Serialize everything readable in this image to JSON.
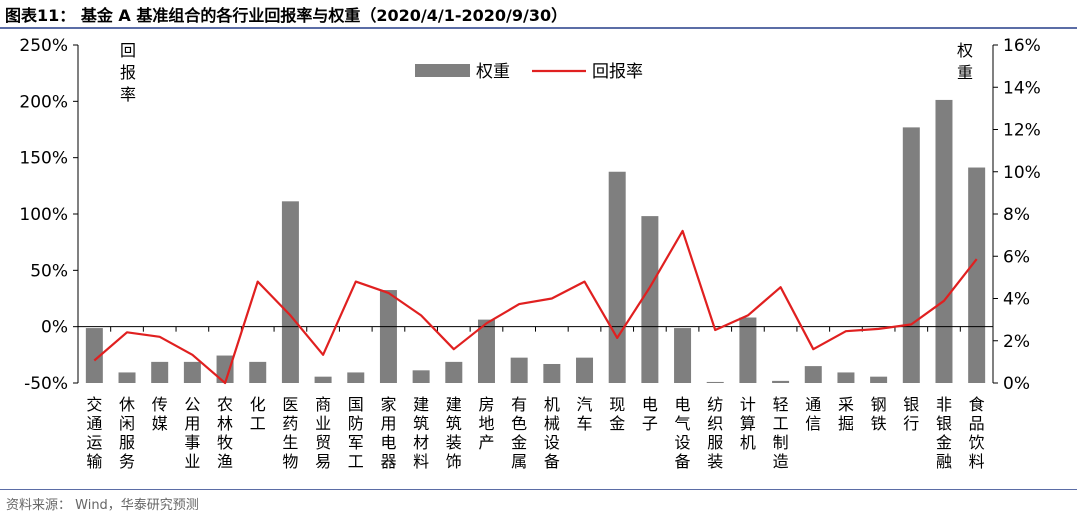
{
  "title": "图表11：  基金 A 基准组合的各行业回报率与权重（2020/4/1-2020/9/30）",
  "source": "资料来源：  Wind，华泰研究预测",
  "chart_data": {
    "type": "bar+line",
    "categories": [
      "交通运输",
      "休闲服务",
      "传媒",
      "公用事业",
      "农林牧渔",
      "化工",
      "医药生物",
      "商业贸易",
      "国防军工",
      "家用电器",
      "建筑材料",
      "建筑装饰",
      "房地产",
      "有色金属",
      "机械设备",
      "汽车",
      "现金",
      "电子",
      "电气设备",
      "纺织服装",
      "计算机",
      "轻工制造",
      "通信",
      "采掘",
      "钢铁",
      "银行",
      "非银金融",
      "食品饮料"
    ],
    "series": [
      {
        "name": "权重",
        "type": "bar",
        "axis": "right",
        "color": "#7f7f7f",
        "values": [
          2.6,
          0.5,
          1.0,
          1.0,
          1.3,
          1.0,
          8.6,
          0.3,
          0.5,
          4.4,
          0.6,
          1.0,
          3.0,
          1.2,
          0.9,
          1.2,
          10.0,
          7.9,
          2.6,
          0.05,
          3.1,
          0.1,
          0.8,
          0.5,
          0.3,
          12.1,
          13.4,
          10.2
        ]
      },
      {
        "name": "回报率",
        "type": "line",
        "axis": "left",
        "color": "#e02020",
        "values": [
          -0.3,
          -0.05,
          -0.09,
          -0.25,
          -0.5,
          0.4,
          0.1,
          -0.25,
          0.4,
          0.3,
          0.1,
          -0.2,
          0.03,
          0.2,
          0.25,
          0.4,
          -0.1,
          0.35,
          0.85,
          -0.03,
          0.1,
          0.35,
          -0.2,
          -0.04,
          -0.02,
          0.02,
          0.23,
          0.6
        ]
      }
    ],
    "left_axis": {
      "label": "回报率",
      "ticks": [
        "250%",
        "200%",
        "150%",
        "100%",
        "50%",
        "0%",
        "-50%"
      ],
      "ylim": [
        -0.5,
        2.5
      ]
    },
    "right_axis": {
      "label": "权重",
      "ticks": [
        "16%",
        "14%",
        "12%",
        "10%",
        "8%",
        "6%",
        "4%",
        "2%",
        "0%"
      ],
      "ylim": [
        0,
        16
      ]
    },
    "legend": {
      "position": "top-center",
      "items": [
        "权重",
        "回报率"
      ]
    },
    "grid": false
  }
}
